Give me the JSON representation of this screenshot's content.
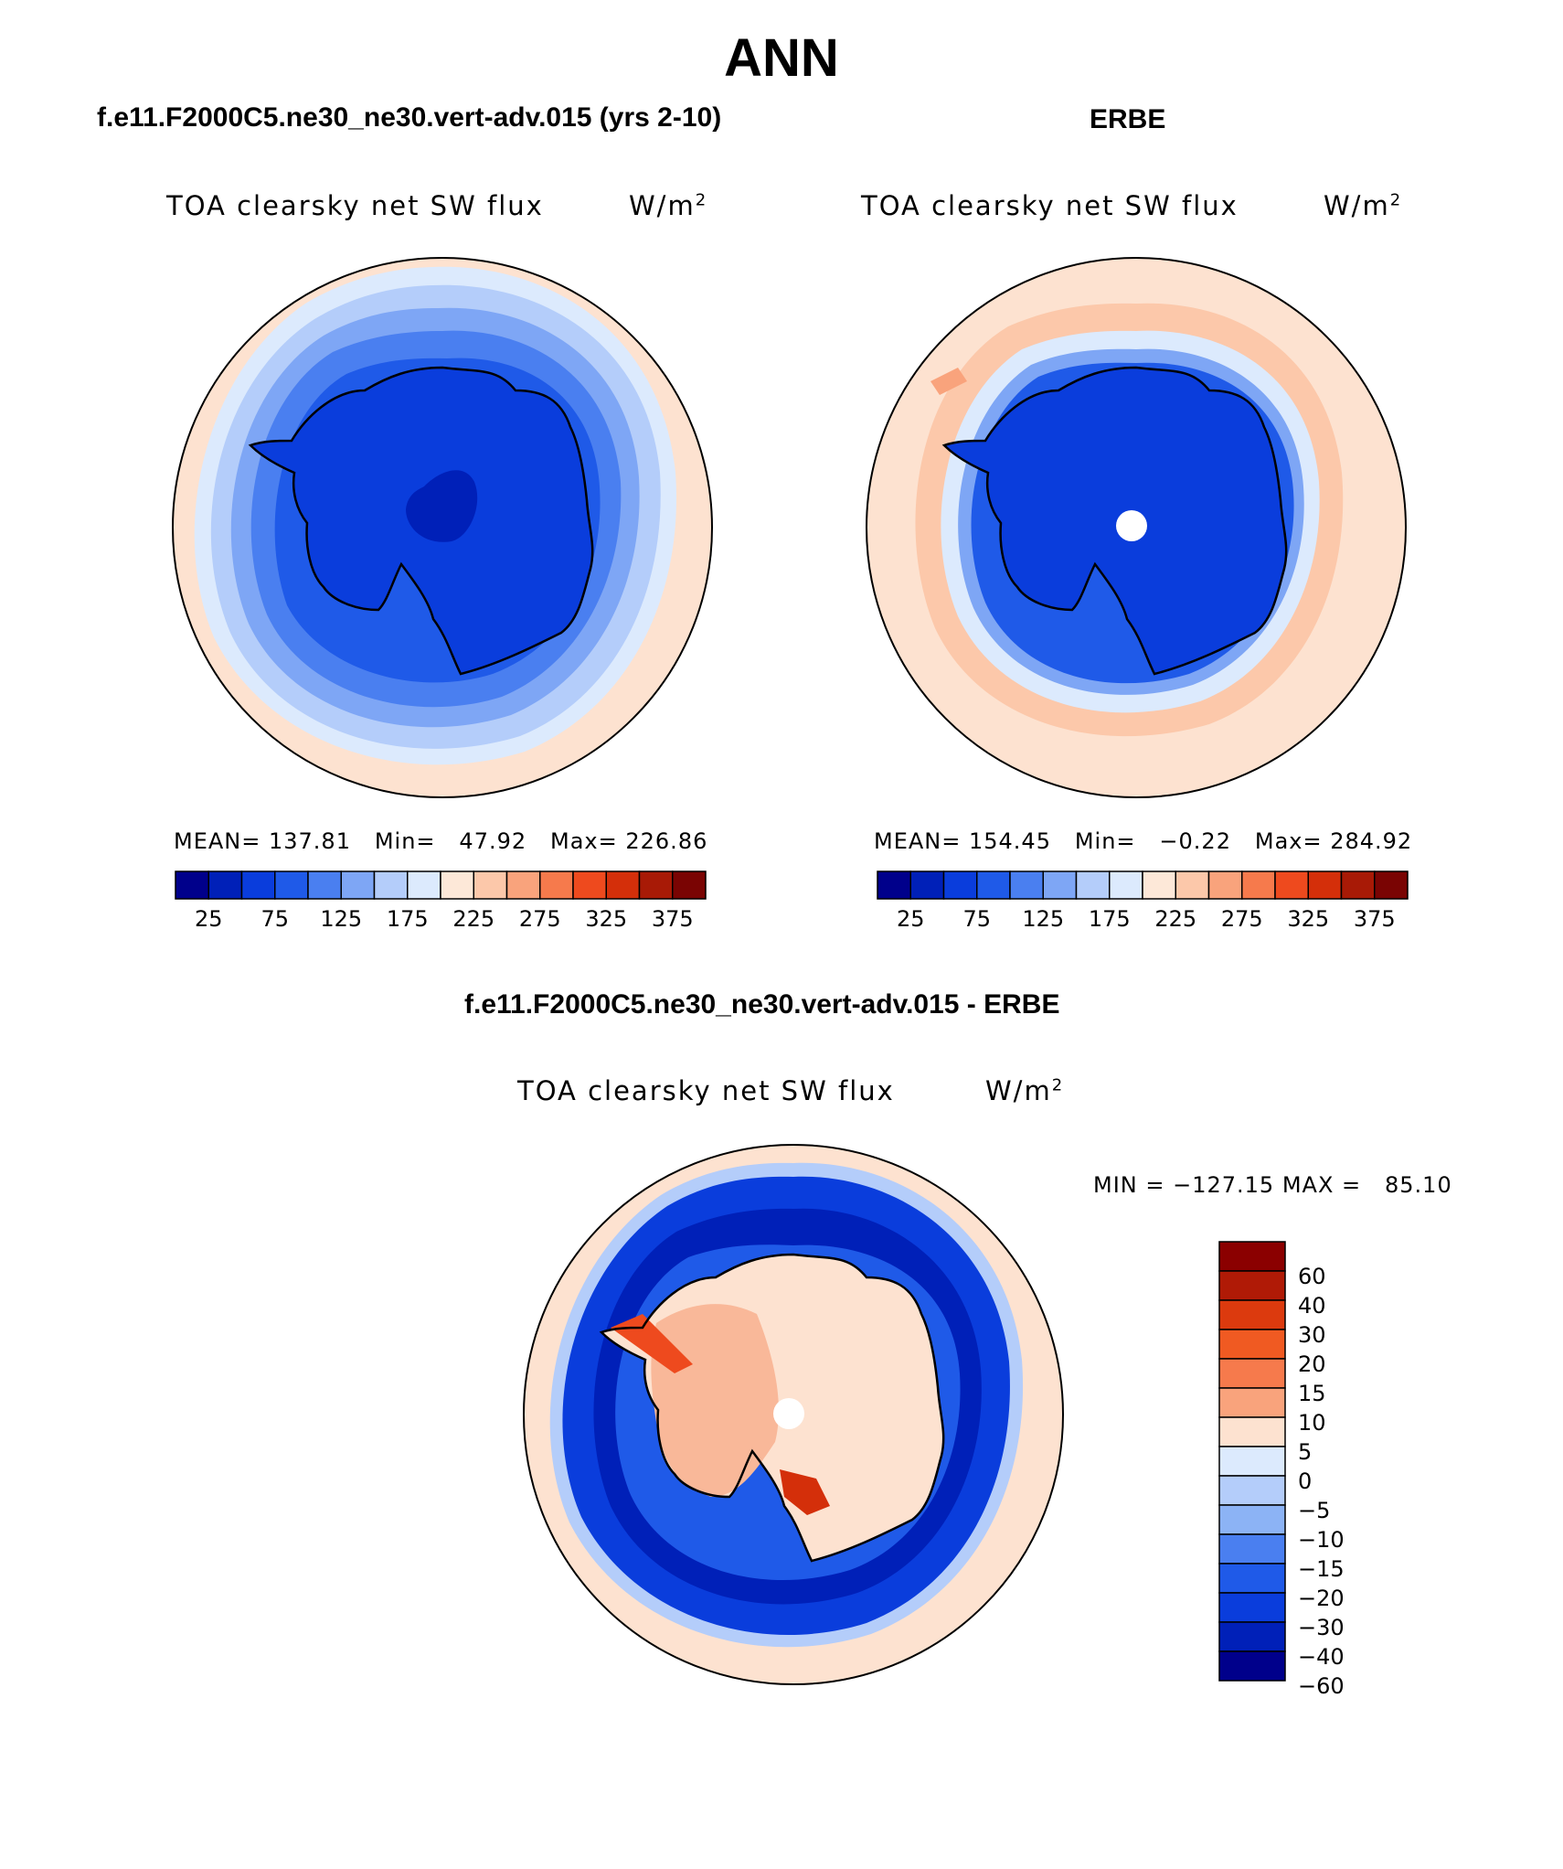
{
  "title": "ANN",
  "panels": [
    {
      "case_title": "f.e11.F2000C5.ne30_ne30.vert-adv.015 (yrs 2-10)",
      "variable_label": "TOA clearsky net SW flux",
      "units": "W/m",
      "units_exponent": "2",
      "stats": "MEAN= 137.81   Min=   47.92   Max= 226.86",
      "pole_hole": false
    },
    {
      "case_title": "ERBE",
      "variable_label": "TOA clearsky net SW flux",
      "units": "W/m",
      "units_exponent": "2",
      "stats": "MEAN= 154.45   Min=   −0.22   Max= 284.92",
      "pole_hole": true
    },
    {
      "case_title": "f.e11.F2000C5.ne30_ne30.vert-adv.015 - ERBE",
      "variable_label": "TOA clearsky net SW flux",
      "units": "W/m",
      "units_exponent": "2",
      "stats": "MIN = −127.15 MAX =   85.10",
      "pole_hole": true
    }
  ],
  "abs_colorbar": {
    "colors": [
      "#00008b",
      "#0020b8",
      "#0a3ddc",
      "#1f5ae8",
      "#4a7ff0",
      "#7ea6f5",
      "#b4cdfa",
      "#dceafd",
      "#fde8d8",
      "#fcc8aa",
      "#f9a37c",
      "#f67a4c",
      "#ee4a1e",
      "#d42f0a",
      "#a81a06",
      "#7a0403"
    ],
    "tick_labels": [
      "25",
      "75",
      "125",
      "175",
      "225",
      "275",
      "325",
      "375"
    ]
  },
  "diff_colorbar": {
    "colors_top_to_bottom": [
      "#8b0000",
      "#b01a06",
      "#dc3a0e",
      "#f05a22",
      "#f67a4c",
      "#f9a37c",
      "#fde2d0",
      "#dceafd",
      "#b4cdfa",
      "#8cb3f5",
      "#4a7ff0",
      "#1f5ae8",
      "#0a3ddc",
      "#0020b8",
      "#00008b"
    ],
    "tick_labels": [
      "60",
      "40",
      "30",
      "20",
      "15",
      "10",
      "5",
      "0",
      "−5",
      "−10",
      "−15",
      "−20",
      "−30",
      "−40",
      "−60"
    ]
  },
  "map_colors": {
    "ocean_light": "#fde2d0",
    "ring_1": "#dceafd",
    "ring_2": "#b4cdfa",
    "ring_3": "#7ea6f5",
    "ring_4": "#4a7ff0",
    "ring_5": "#1f5ae8",
    "ring_6": "#0a3ddc",
    "ring_7": "#0020b8",
    "land_pos": "#f9b899",
    "land_pos_strong": "#ee4a1e",
    "outline": "#000000"
  }
}
